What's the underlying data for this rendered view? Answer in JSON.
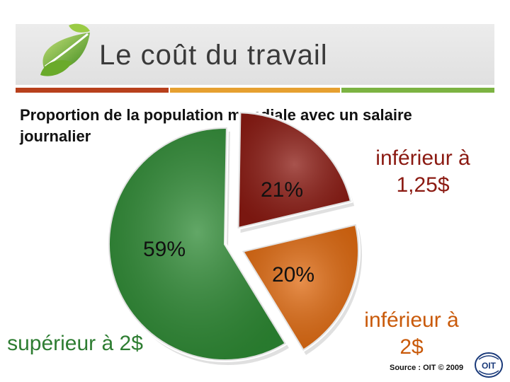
{
  "slide": {
    "title": "Le coût du travail",
    "subtitle": "Proportion de la population mondiale avec un salaire journalier",
    "source": "Source : OIT © 2009",
    "logo_text": "OIT"
  },
  "colors": {
    "red": "#8b1a12",
    "orange": "#e06a10",
    "green": "#2e8a34",
    "stripe_red": "#b8401c",
    "stripe_orange": "#e6a030",
    "stripe_green": "#7cb342"
  },
  "icons": [
    "leaf-icon",
    "ilo-logo-icon"
  ],
  "chart_data": {
    "type": "pie",
    "exploded": true,
    "slices": [
      {
        "label": "inférieur à 1,25$",
        "value": 21,
        "value_label": "21%",
        "color": "#8b1a12"
      },
      {
        "label": "inférieur à 2$",
        "value": 20,
        "value_label": "20%",
        "color": "#e06a10"
      },
      {
        "label": "supérieur à 2$",
        "value": 59,
        "value_label": "59%",
        "color": "#2e8a34"
      }
    ]
  }
}
